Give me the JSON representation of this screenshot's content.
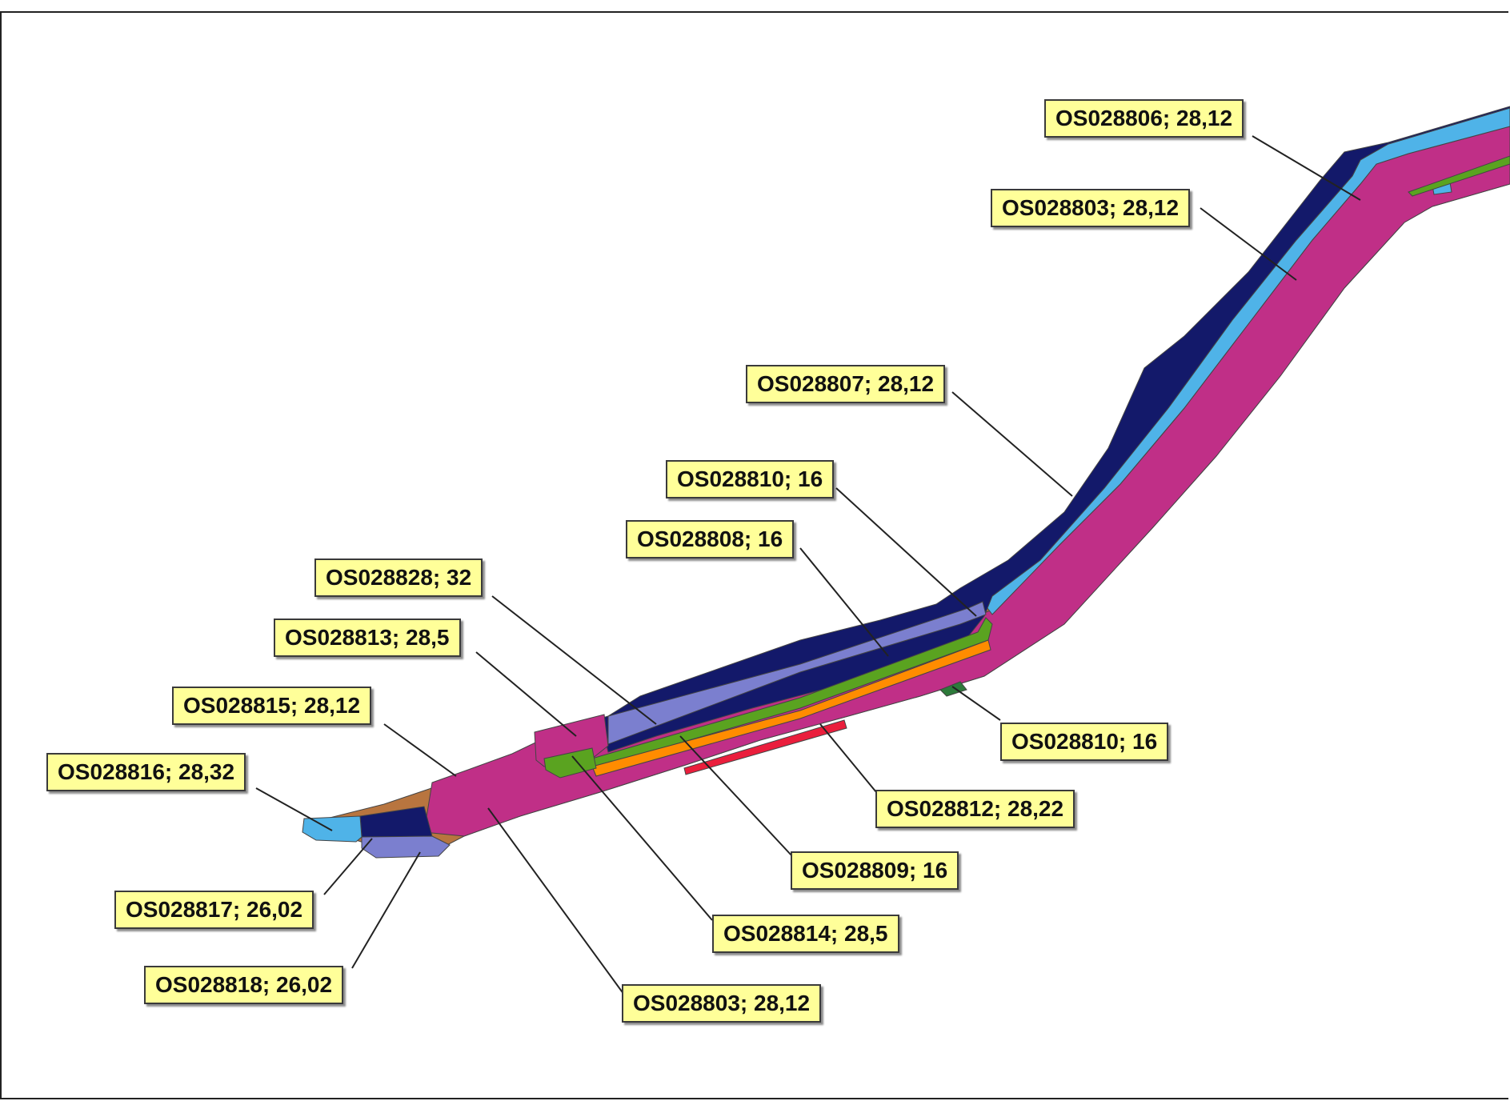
{
  "colors": {
    "navy": "#13196a",
    "light_blue": "#4fb3e8",
    "magenta": "#c02f87",
    "brown": "#b8753f",
    "green": "#5aa320",
    "orange": "#ff8c00",
    "lavender": "#7b7fcf",
    "red": "#ea1e3c",
    "dark_green": "#2d7a3a",
    "label_bg": "#ffff99"
  },
  "callouts": [
    {
      "id": "c1",
      "text": "OS028806; 28,12"
    },
    {
      "id": "c2",
      "text": "OS028803; 28,12"
    },
    {
      "id": "c3",
      "text": "OS028807; 28,12"
    },
    {
      "id": "c4",
      "text": "OS028810; 16"
    },
    {
      "id": "c5",
      "text": "OS028808; 16"
    },
    {
      "id": "c6",
      "text": "OS028828; 32"
    },
    {
      "id": "c7",
      "text": "OS028813; 28,5"
    },
    {
      "id": "c8",
      "text": "OS028815; 28,12"
    },
    {
      "id": "c9",
      "text": "OS028816; 28,32"
    },
    {
      "id": "c10",
      "text": "OS028817; 26,02"
    },
    {
      "id": "c11",
      "text": "OS028818; 26,02"
    },
    {
      "id": "c12",
      "text": "OS028803; 28,12"
    },
    {
      "id": "c13",
      "text": "OS028814; 28,5"
    },
    {
      "id": "c14",
      "text": "OS028809; 16"
    },
    {
      "id": "c15",
      "text": "OS028812; 28,22"
    },
    {
      "id": "c16",
      "text": "OS028810; 16"
    }
  ]
}
